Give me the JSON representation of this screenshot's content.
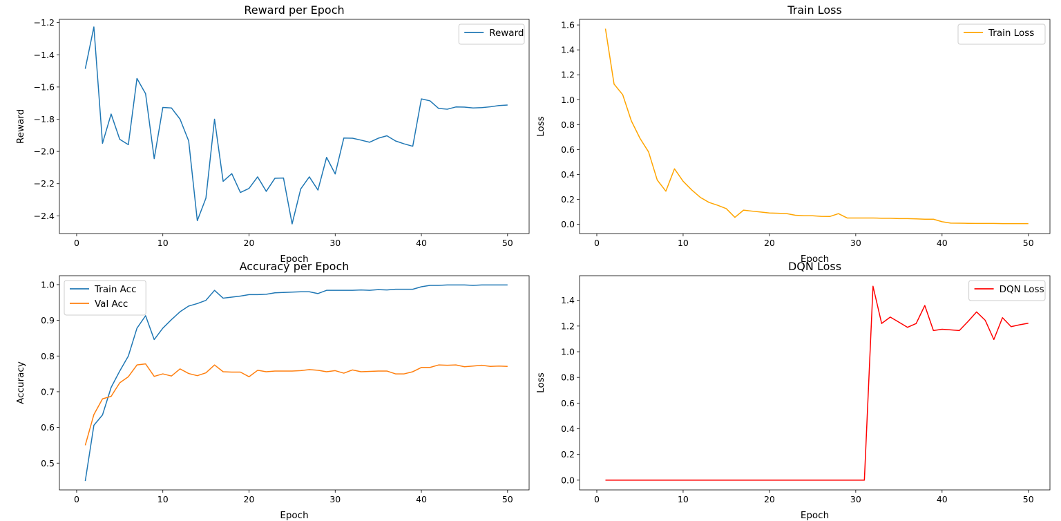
{
  "chart_data": [
    {
      "type": "line",
      "title": "Reward per Epoch",
      "xlabel": "Epoch",
      "ylabel": "Reward",
      "xlim": [
        -2,
        52.5
      ],
      "ylim": [
        -2.51,
        -1.18
      ],
      "xticks": [
        0,
        10,
        20,
        30,
        40,
        50
      ],
      "xtick_labels": [
        "0",
        "10",
        "20",
        "30",
        "40",
        "50"
      ],
      "yticks": [
        -2.4,
        -2.2,
        -2.0,
        -1.8,
        -1.6,
        -1.4,
        -1.2
      ],
      "ytick_labels": [
        "−2.4",
        "−2.2",
        "−2.0",
        "−1.8",
        "−1.6",
        "−1.4",
        "−1.2"
      ],
      "legend": "top-right",
      "series": [
        {
          "name": "Reward",
          "color": "#1f77b4",
          "x": [
            1,
            2,
            3,
            4,
            5,
            6,
            7,
            8,
            9,
            10,
            11,
            12,
            13,
            14,
            15,
            16,
            17,
            18,
            19,
            20,
            21,
            22,
            23,
            24,
            25,
            26,
            27,
            28,
            29,
            30,
            31,
            32,
            33,
            34,
            35,
            36,
            37,
            38,
            39,
            40,
            41,
            42,
            43,
            44,
            45,
            46,
            47,
            48,
            49,
            50
          ],
          "values": [
            -1.487,
            -1.227,
            -1.95,
            -1.768,
            -1.925,
            -1.958,
            -1.547,
            -1.642,
            -2.045,
            -1.727,
            -1.73,
            -1.8,
            -1.935,
            -2.43,
            -2.29,
            -1.8,
            -2.186,
            -2.138,
            -2.255,
            -2.23,
            -2.158,
            -2.248,
            -2.167,
            -2.165,
            -2.45,
            -2.233,
            -2.158,
            -2.24,
            -2.037,
            -2.14,
            -1.917,
            -1.918,
            -1.93,
            -1.943,
            -1.918,
            -1.903,
            -1.935,
            -1.953,
            -1.968,
            -1.674,
            -1.686,
            -1.733,
            -1.738,
            -1.724,
            -1.725,
            -1.73,
            -1.728,
            -1.723,
            -1.715,
            -1.712
          ]
        }
      ]
    },
    {
      "type": "line",
      "title": "Train Loss",
      "xlabel": "Epoch",
      "ylabel": "Loss",
      "xlim": [
        -2,
        52.5
      ],
      "ylim": [
        -0.075,
        1.645
      ],
      "xticks": [
        0,
        10,
        20,
        30,
        40,
        50
      ],
      "xtick_labels": [
        "0",
        "10",
        "20",
        "30",
        "40",
        "50"
      ],
      "yticks": [
        0.0,
        0.2,
        0.4,
        0.6,
        0.8,
        1.0,
        1.2,
        1.4,
        1.6
      ],
      "ytick_labels": [
        "0.0",
        "0.2",
        "0.4",
        "0.6",
        "0.8",
        "1.0",
        "1.2",
        "1.4",
        "1.6"
      ],
      "legend": "top-right",
      "series": [
        {
          "name": "Train Loss",
          "color": "#ffa500",
          "x": [
            1,
            2,
            3,
            4,
            5,
            6,
            7,
            8,
            9,
            10,
            11,
            12,
            13,
            14,
            15,
            16,
            17,
            18,
            19,
            20,
            21,
            22,
            23,
            24,
            25,
            26,
            27,
            28,
            29,
            30,
            31,
            32,
            33,
            34,
            35,
            36,
            37,
            38,
            39,
            40,
            41,
            42,
            43,
            44,
            45,
            46,
            47,
            48,
            49,
            50
          ],
          "values": [
            1.57,
            1.125,
            1.04,
            0.83,
            0.69,
            0.58,
            0.355,
            0.265,
            0.445,
            0.345,
            0.275,
            0.215,
            0.175,
            0.152,
            0.125,
            0.055,
            0.113,
            0.105,
            0.098,
            0.09,
            0.088,
            0.085,
            0.072,
            0.068,
            0.068,
            0.063,
            0.062,
            0.085,
            0.05,
            0.05,
            0.05,
            0.05,
            0.048,
            0.048,
            0.045,
            0.045,
            0.043,
            0.04,
            0.04,
            0.02,
            0.009,
            0.008,
            0.007,
            0.006,
            0.006,
            0.006,
            0.005,
            0.005,
            0.005,
            0.005
          ]
        }
      ]
    },
    {
      "type": "line",
      "title": "Accuracy per Epoch",
      "xlabel": "Epoch",
      "ylabel": "Accuracy",
      "xlim": [
        -2,
        52.5
      ],
      "ylim": [
        0.425,
        1.025
      ],
      "xticks": [
        0,
        10,
        20,
        30,
        40,
        50
      ],
      "xtick_labels": [
        "0",
        "10",
        "20",
        "30",
        "40",
        "50"
      ],
      "yticks": [
        0.5,
        0.6,
        0.7,
        0.8,
        0.9,
        1.0
      ],
      "ytick_labels": [
        "0.5",
        "0.6",
        "0.7",
        "0.8",
        "0.9",
        "1.0"
      ],
      "legend": "top-left",
      "series": [
        {
          "name": "Train Acc",
          "color": "#1f77b4",
          "x": [
            1,
            2,
            3,
            4,
            5,
            6,
            7,
            8,
            9,
            10,
            11,
            12,
            13,
            14,
            15,
            16,
            17,
            18,
            19,
            20,
            21,
            22,
            23,
            24,
            25,
            26,
            27,
            28,
            29,
            30,
            31,
            32,
            33,
            34,
            35,
            36,
            37,
            38,
            39,
            40,
            41,
            42,
            43,
            44,
            45,
            46,
            47,
            48,
            49,
            50
          ],
          "values": [
            0.45,
            0.606,
            0.635,
            0.712,
            0.758,
            0.8,
            0.878,
            0.913,
            0.846,
            0.878,
            0.902,
            0.924,
            0.94,
            0.947,
            0.956,
            0.984,
            0.962,
            0.965,
            0.968,
            0.972,
            0.972,
            0.973,
            0.977,
            0.978,
            0.979,
            0.98,
            0.98,
            0.975,
            0.984,
            0.984,
            0.984,
            0.984,
            0.985,
            0.984,
            0.986,
            0.985,
            0.987,
            0.987,
            0.987,
            0.994,
            0.998,
            0.998,
            0.999,
            0.999,
            0.999,
            0.998,
            0.999,
            0.999,
            0.999,
            0.999
          ]
        },
        {
          "name": "Val Acc",
          "color": "#ff7f0e",
          "x": [
            1,
            2,
            3,
            4,
            5,
            6,
            7,
            8,
            9,
            10,
            11,
            12,
            13,
            14,
            15,
            16,
            17,
            18,
            19,
            20,
            21,
            22,
            23,
            24,
            25,
            26,
            27,
            28,
            29,
            30,
            31,
            32,
            33,
            34,
            35,
            36,
            37,
            38,
            39,
            40,
            41,
            42,
            43,
            44,
            45,
            46,
            47,
            48,
            49,
            50
          ],
          "values": [
            0.55,
            0.636,
            0.68,
            0.687,
            0.725,
            0.742,
            0.775,
            0.778,
            0.743,
            0.75,
            0.744,
            0.764,
            0.751,
            0.745,
            0.753,
            0.775,
            0.756,
            0.755,
            0.755,
            0.742,
            0.76,
            0.756,
            0.758,
            0.758,
            0.758,
            0.759,
            0.762,
            0.76,
            0.756,
            0.759,
            0.752,
            0.761,
            0.756,
            0.757,
            0.758,
            0.758,
            0.75,
            0.75,
            0.756,
            0.768,
            0.768,
            0.775,
            0.774,
            0.775,
            0.77,
            0.772,
            0.774,
            0.771,
            0.772,
            0.771
          ]
        }
      ]
    },
    {
      "type": "line",
      "title": "DQN Loss",
      "xlabel": "Epoch",
      "ylabel": "Loss",
      "xlim": [
        -2,
        52.5
      ],
      "ylim": [
        -0.076,
        1.592
      ],
      "xticks": [
        0,
        10,
        20,
        30,
        40,
        50
      ],
      "xtick_labels": [
        "0",
        "10",
        "20",
        "30",
        "40",
        "50"
      ],
      "yticks": [
        0.0,
        0.2,
        0.4,
        0.6,
        0.8,
        1.0,
        1.2,
        1.4
      ],
      "ytick_labels": [
        "0.0",
        "0.2",
        "0.4",
        "0.6",
        "0.8",
        "1.0",
        "1.2",
        "1.4"
      ],
      "legend": "top-right",
      "series": [
        {
          "name": "DQN Loss",
          "color": "#ff0000",
          "x": [
            1,
            2,
            3,
            4,
            5,
            6,
            7,
            8,
            9,
            10,
            11,
            12,
            13,
            14,
            15,
            16,
            17,
            18,
            19,
            20,
            21,
            22,
            23,
            24,
            25,
            26,
            27,
            28,
            29,
            30,
            31,
            32,
            33,
            34,
            35,
            36,
            37,
            38,
            39,
            40,
            41,
            42,
            43,
            44,
            45,
            46,
            47,
            48,
            49,
            50
          ],
          "values": [
            0,
            0,
            0,
            0,
            0,
            0,
            0,
            0,
            0,
            0,
            0,
            0,
            0,
            0,
            0,
            0,
            0,
            0,
            0,
            0,
            0,
            0,
            0,
            0,
            0,
            0,
            0,
            0,
            0,
            0,
            0,
            1.51,
            1.22,
            1.27,
            1.23,
            1.19,
            1.22,
            1.36,
            1.165,
            1.175,
            1.17,
            1.165,
            1.235,
            1.31,
            1.245,
            1.095,
            1.265,
            1.195,
            1.21,
            1.222
          ]
        }
      ]
    }
  ]
}
